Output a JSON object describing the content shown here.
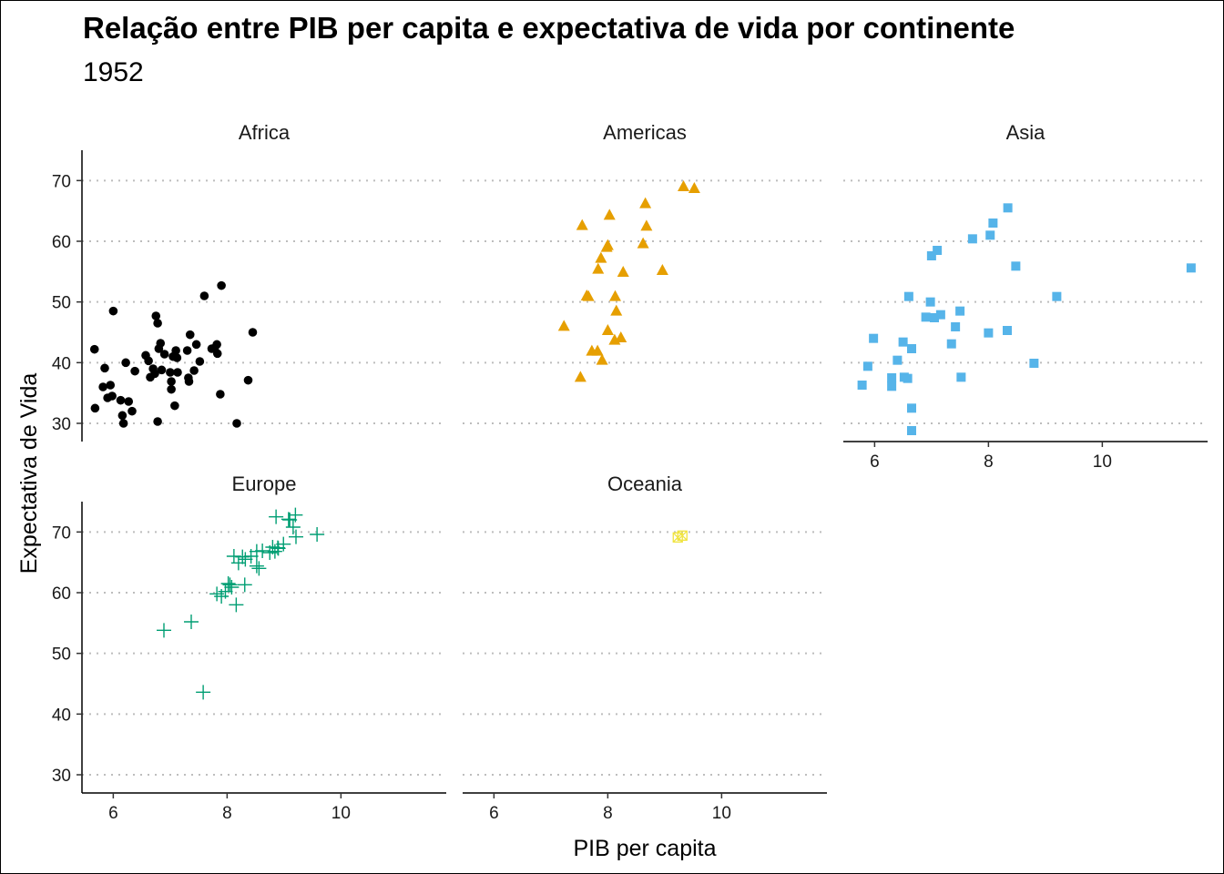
{
  "chart_data": {
    "type": "scatter",
    "title": "Relação entre PIB per capita e expectativa de vida por continente",
    "subtitle": "1952",
    "xlabel": "PIB per capita",
    "ylabel": "Expectativa de Vida",
    "xlim": [
      5.45,
      11.85
    ],
    "ylim": [
      27,
      75
    ],
    "x_ticks": [
      6,
      8,
      10
    ],
    "y_ticks": [
      30,
      40,
      50,
      60,
      70
    ],
    "grid": "horizontal dotted",
    "legend": "none",
    "facets": [
      {
        "name": "Africa",
        "color": "#000000",
        "shape": "circle",
        "points": [
          [
            5.67,
            42.2
          ],
          [
            5.68,
            32.5
          ],
          [
            5.82,
            36.0
          ],
          [
            5.85,
            39.1
          ],
          [
            5.9,
            34.2
          ],
          [
            5.95,
            36.3
          ],
          [
            5.98,
            34.5
          ],
          [
            6.0,
            48.5
          ],
          [
            6.13,
            33.8
          ],
          [
            6.16,
            31.3
          ],
          [
            6.18,
            30.0
          ],
          [
            6.22,
            40.0
          ],
          [
            6.27,
            33.6
          ],
          [
            6.33,
            32.0
          ],
          [
            6.38,
            38.6
          ],
          [
            6.57,
            41.2
          ],
          [
            6.62,
            40.3
          ],
          [
            6.65,
            37.6
          ],
          [
            6.7,
            39.0
          ],
          [
            6.73,
            38.2
          ],
          [
            6.75,
            47.7
          ],
          [
            6.78,
            46.5
          ],
          [
            6.78,
            30.3
          ],
          [
            6.8,
            42.3
          ],
          [
            6.83,
            43.2
          ],
          [
            6.85,
            38.8
          ],
          [
            6.9,
            41.4
          ],
          [
            7.0,
            38.4
          ],
          [
            7.02,
            36.9
          ],
          [
            7.02,
            35.6
          ],
          [
            7.05,
            41.0
          ],
          [
            7.08,
            32.9
          ],
          [
            7.1,
            42.0
          ],
          [
            7.12,
            40.8
          ],
          [
            7.13,
            38.4
          ],
          [
            7.3,
            42.0
          ],
          [
            7.32,
            37.5
          ],
          [
            7.33,
            36.9
          ],
          [
            7.35,
            44.6
          ],
          [
            7.42,
            38.7
          ],
          [
            7.46,
            43.0
          ],
          [
            7.52,
            40.2
          ],
          [
            7.6,
            51.0
          ],
          [
            7.73,
            42.3
          ],
          [
            7.78,
            42.4
          ],
          [
            7.82,
            43.0
          ],
          [
            7.83,
            41.5
          ],
          [
            7.88,
            34.8
          ],
          [
            7.9,
            52.7
          ],
          [
            8.17,
            30.0
          ],
          [
            8.37,
            37.1
          ],
          [
            8.45,
            45.0
          ]
        ]
      },
      {
        "name": "Americas",
        "color": "#E69F00",
        "shape": "triangle",
        "points": [
          [
            7.23,
            46.0
          ],
          [
            7.52,
            37.6
          ],
          [
            7.55,
            62.6
          ],
          [
            7.63,
            51.0
          ],
          [
            7.66,
            50.9
          ],
          [
            7.72,
            41.9
          ],
          [
            7.82,
            41.9
          ],
          [
            7.83,
            55.4
          ],
          [
            7.88,
            57.2
          ],
          [
            7.9,
            40.4
          ],
          [
            7.98,
            59.0
          ],
          [
            8.0,
            59.3
          ],
          [
            8.03,
            64.3
          ],
          [
            8.0,
            45.3
          ],
          [
            8.12,
            43.7
          ],
          [
            8.13,
            50.9
          ],
          [
            8.15,
            48.5
          ],
          [
            8.23,
            44.1
          ],
          [
            8.27,
            54.9
          ],
          [
            8.62,
            59.6
          ],
          [
            8.66,
            66.2
          ],
          [
            8.68,
            62.5
          ],
          [
            8.96,
            55.2
          ],
          [
            9.33,
            69.0
          ],
          [
            9.52,
            68.7
          ]
        ]
      },
      {
        "name": "Asia",
        "color": "#56B4E9",
        "shape": "square",
        "points": [
          [
            5.78,
            36.3
          ],
          [
            5.88,
            39.4
          ],
          [
            5.98,
            44.0
          ],
          [
            6.3,
            37.5
          ],
          [
            6.3,
            36.1
          ],
          [
            6.4,
            40.4
          ],
          [
            6.5,
            43.4
          ],
          [
            6.52,
            37.6
          ],
          [
            6.58,
            37.4
          ],
          [
            6.6,
            50.9
          ],
          [
            6.65,
            42.3
          ],
          [
            6.65,
            32.5
          ],
          [
            6.65,
            28.8
          ],
          [
            6.9,
            47.5
          ],
          [
            6.98,
            50.0
          ],
          [
            7.0,
            57.6
          ],
          [
            7.05,
            47.4
          ],
          [
            7.1,
            58.5
          ],
          [
            7.16,
            47.9
          ],
          [
            7.35,
            43.1
          ],
          [
            7.42,
            45.9
          ],
          [
            7.5,
            48.5
          ],
          [
            7.52,
            37.6
          ],
          [
            7.72,
            60.4
          ],
          [
            8.0,
            44.9
          ],
          [
            8.03,
            61.0
          ],
          [
            8.08,
            63.0
          ],
          [
            8.33,
            45.3
          ],
          [
            8.34,
            65.5
          ],
          [
            8.48,
            55.9
          ],
          [
            8.8,
            39.9
          ],
          [
            9.2,
            50.9
          ],
          [
            11.56,
            55.6
          ]
        ]
      },
      {
        "name": "Europe",
        "color": "#009E73",
        "shape": "plus",
        "points": [
          [
            6.89,
            53.8
          ],
          [
            7.37,
            55.2
          ],
          [
            7.58,
            43.6
          ],
          [
            7.82,
            59.8
          ],
          [
            7.9,
            59.4
          ],
          [
            7.97,
            60.2
          ],
          [
            8.02,
            61.5
          ],
          [
            8.05,
            61.3
          ],
          [
            8.08,
            60.9
          ],
          [
            8.12,
            66.0
          ],
          [
            8.16,
            58.0
          ],
          [
            8.2,
            64.9
          ],
          [
            8.27,
            65.9
          ],
          [
            8.31,
            61.3
          ],
          [
            8.32,
            65.5
          ],
          [
            8.42,
            66.0
          ],
          [
            8.52,
            64.4
          ],
          [
            8.52,
            66.8
          ],
          [
            8.56,
            64.0
          ],
          [
            8.62,
            66.9
          ],
          [
            8.75,
            66.6
          ],
          [
            8.8,
            67.5
          ],
          [
            8.84,
            66.8
          ],
          [
            8.86,
            72.5
          ],
          [
            8.89,
            67.4
          ],
          [
            8.9,
            67.3
          ],
          [
            8.99,
            68.0
          ],
          [
            9.08,
            72.1
          ],
          [
            9.1,
            72.0
          ],
          [
            9.16,
            70.8
          ],
          [
            9.2,
            72.8
          ],
          [
            9.21,
            69.2
          ],
          [
            9.58,
            69.6
          ]
        ]
      },
      {
        "name": "Oceania",
        "color": "#F0E442",
        "shape": "square-cross",
        "points": [
          [
            9.23,
            69.1
          ],
          [
            9.31,
            69.4
          ]
        ]
      }
    ]
  }
}
